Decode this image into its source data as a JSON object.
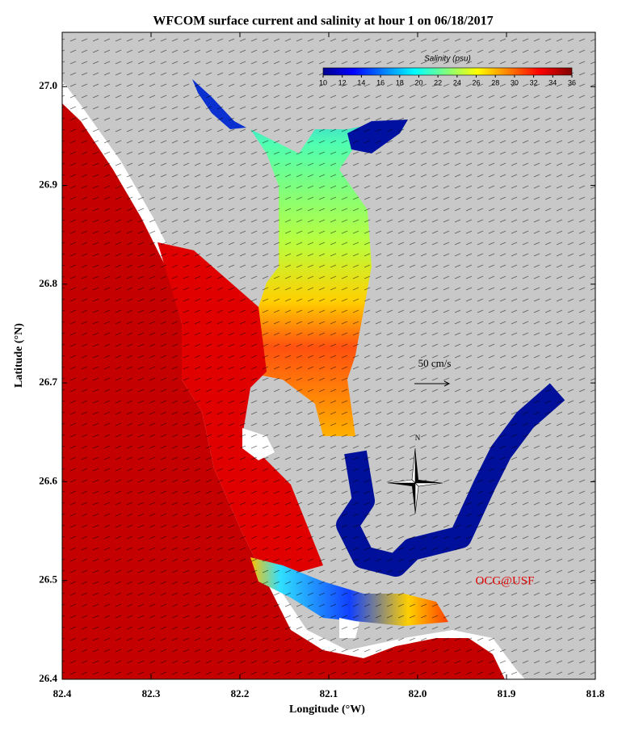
{
  "chart_data": {
    "type": "map",
    "title": "WFCOM surface current and salinity at hour 1 on 06/18/2017",
    "xlabel": "Longitude (°W)",
    "ylabel": "Latitude (°N)",
    "xlim": [
      82.4,
      81.8
    ],
    "xticks": [
      82.4,
      82.3,
      82.2,
      82.1,
      {
        "value": 82,
        "label": "82.0"
      },
      81.9,
      81.8
    ],
    "ylim": [
      26.4,
      27.055
    ],
    "yticks": [
      26.4,
      26.5,
      26.6,
      26.7,
      26.8,
      26.9,
      {
        "value": 27,
        "label": "27.0"
      }
    ],
    "colorbar": {
      "label": "Salinity (psu)",
      "lim": [
        10,
        36
      ],
      "ticks": [
        10,
        12,
        14,
        16,
        18,
        20,
        22,
        24,
        26,
        28,
        30,
        32,
        34,
        36
      ]
    },
    "scale_label": "50 cm/s",
    "compass_label": "N",
    "credit": "OCG@USF"
  }
}
